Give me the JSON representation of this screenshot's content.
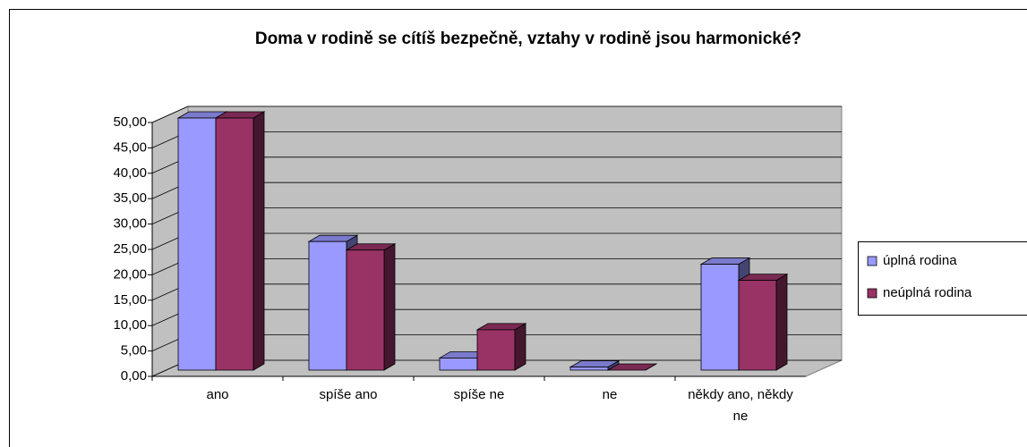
{
  "chart_data": {
    "type": "bar",
    "title": "Doma v rodině se cítíš bezpečně, vztahy v rodině jsou harmonické?",
    "categories": [
      "ano",
      "spíše ano",
      "spíše ne",
      "ne",
      "někdy ano, někdy ne"
    ],
    "series": [
      {
        "name": "úplná rodina",
        "color": "#9999ff",
        "values": [
          50,
          25.5,
          2.4,
          0.6,
          21
        ]
      },
      {
        "name": "neúplná rodina",
        "color": "#993366",
        "values": [
          50,
          23.8,
          8,
          0,
          17.8
        ]
      }
    ],
    "ylim": [
      0,
      50
    ],
    "yticks": [
      {
        "value": 0,
        "label": "0,00"
      },
      {
        "value": 5,
        "label": "5,00"
      },
      {
        "value": 10,
        "label": "10,00"
      },
      {
        "value": 15,
        "label": "15,00"
      },
      {
        "value": 20,
        "label": "20,00"
      },
      {
        "value": 25,
        "label": "25,00"
      },
      {
        "value": 30,
        "label": "30,00"
      },
      {
        "value": 35,
        "label": "35,00"
      },
      {
        "value": 40,
        "label": "40,00"
      },
      {
        "value": 45,
        "label": "45,00"
      },
      {
        "value": 50,
        "label": "50,00"
      }
    ],
    "grid": true,
    "legend": "right"
  }
}
